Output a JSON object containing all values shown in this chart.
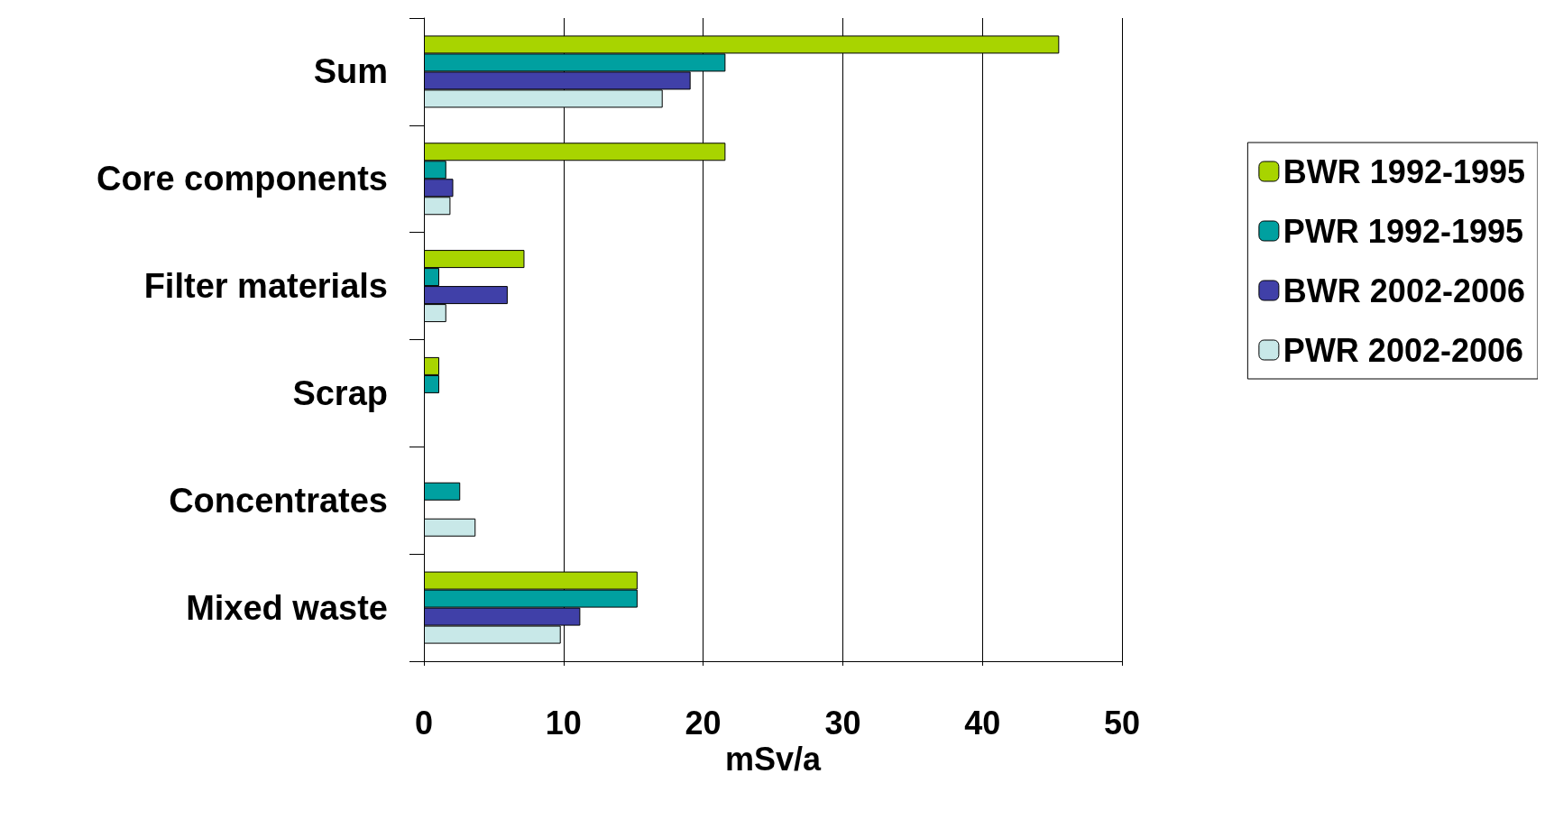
{
  "chart_data": {
    "type": "bar",
    "orientation": "horizontal",
    "xlabel": "mSv/a",
    "categories": [
      "Sum",
      "Core components",
      "Filter materials",
      "Scrap",
      "Concentrates",
      "Mixed waste"
    ],
    "series": [
      {
        "name": "BWR 1992-1995",
        "color": "#a8d400",
        "values": [
          45.5,
          21.6,
          7.2,
          1.1,
          null,
          15.3
        ]
      },
      {
        "name": "PWR 1992-1995",
        "color": "#00a0a0",
        "values": [
          21.6,
          1.6,
          1.1,
          1.1,
          2.6,
          15.3
        ]
      },
      {
        "name": "BWR 2002-2006",
        "color": "#4040a8",
        "values": [
          19.1,
          2.1,
          6.0,
          null,
          null,
          11.2
        ]
      },
      {
        "name": "PWR 2002-2006",
        "color": "#c8e8e8",
        "values": [
          17.1,
          1.9,
          1.6,
          null,
          3.7,
          9.8
        ]
      }
    ],
    "xlim": [
      0,
      50
    ],
    "xticks": [
      0,
      10,
      20,
      30,
      40,
      50
    ],
    "grid": "x",
    "legend": "right"
  }
}
